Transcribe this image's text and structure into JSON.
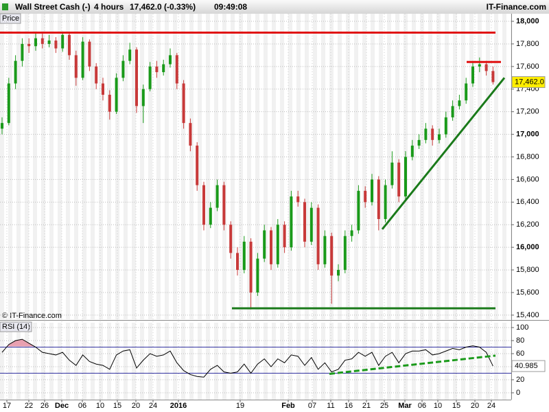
{
  "header": {
    "instrument": "Wall Street Cash (-)",
    "timeframe": "4 hours",
    "quote": "17,462.0 (-0.33%)",
    "time": "09:49:08",
    "site": "IT-Finance.com"
  },
  "chart_data": [
    {
      "type": "candlestick",
      "title": "Price",
      "watermark": "© IT-Finance.com",
      "ylim": [
        15363,
        18067
      ],
      "yticks": [
        {
          "value": 18000,
          "label": "18,000"
        },
        {
          "value": 17800,
          "label": "17,800"
        },
        {
          "value": 17600,
          "label": "17,600"
        },
        {
          "value": 17400,
          "label": "17,400"
        },
        {
          "value": 17200,
          "label": "17,200"
        },
        {
          "value": 17000,
          "label": "17,000"
        },
        {
          "value": 16800,
          "label": "16,800"
        },
        {
          "value": 16600,
          "label": "16,600"
        },
        {
          "value": 16400,
          "label": "16,400"
        },
        {
          "value": 16200,
          "label": "16,200"
        },
        {
          "value": 16000,
          "label": "16,000"
        },
        {
          "value": 15800,
          "label": "15,800"
        },
        {
          "value": 15600,
          "label": "15,600"
        },
        {
          "value": 15400,
          "label": "15,400"
        }
      ],
      "categories": [
        "17",
        "22",
        "26",
        "Dec",
        "06",
        "10",
        "15",
        "20",
        "24",
        "2016",
        "19",
        "Feb",
        "07",
        "11",
        "16",
        "21",
        "25",
        "Mar",
        "06",
        "10",
        "15",
        "20",
        "24"
      ],
      "up_color": "#1a9a1a",
      "down_color": "#c83a3a",
      "candles": [
        [
          17050,
          17150,
          17000,
          17100
        ],
        [
          17100,
          17500,
          17080,
          17450
        ],
        [
          17450,
          17700,
          17400,
          17650
        ],
        [
          17650,
          17850,
          17600,
          17800
        ],
        [
          17800,
          17850,
          17720,
          17780
        ],
        [
          17780,
          17900,
          17740,
          17850
        ],
        [
          17850,
          17890,
          17760,
          17800
        ],
        [
          17800,
          17880,
          17770,
          17830
        ],
        [
          17830,
          17860,
          17720,
          17760
        ],
        [
          17760,
          17910,
          17730,
          17880
        ],
        [
          17880,
          17900,
          17660,
          17700
        ],
        [
          17700,
          17740,
          17430,
          17500
        ],
        [
          17500,
          17860,
          17480,
          17820
        ],
        [
          17820,
          17840,
          17560,
          17600
        ],
        [
          17600,
          17630,
          17400,
          17450
        ],
        [
          17450,
          17500,
          17300,
          17350
        ],
        [
          17350,
          17390,
          17130,
          17200
        ],
        [
          17200,
          17540,
          17180,
          17500
        ],
        [
          17500,
          17700,
          17470,
          17650
        ],
        [
          17650,
          17810,
          17620,
          17750
        ],
        [
          17750,
          17770,
          17190,
          17250
        ],
        [
          17250,
          17440,
          17100,
          17400
        ],
        [
          17400,
          17640,
          17380,
          17600
        ],
        [
          17600,
          17650,
          17500,
          17550
        ],
        [
          17550,
          17660,
          17520,
          17620
        ],
        [
          17620,
          17760,
          17590,
          17700
        ],
        [
          17700,
          17720,
          17400,
          17450
        ],
        [
          17450,
          17480,
          17050,
          17100
        ],
        [
          17100,
          17140,
          16850,
          16900
        ],
        [
          16900,
          16930,
          16500,
          16550
        ],
        [
          16550,
          16580,
          16150,
          16200
        ],
        [
          16200,
          16400,
          16170,
          16350
        ],
        [
          16350,
          16600,
          16320,
          16550
        ],
        [
          16550,
          16580,
          16150,
          16200
        ],
        [
          16200,
          16230,
          15900,
          15950
        ],
        [
          15950,
          16000,
          15750,
          15800
        ],
        [
          15800,
          16100,
          15770,
          16050
        ],
        [
          16050,
          16080,
          15450,
          15600
        ],
        [
          15600,
          15950,
          15570,
          15900
        ],
        [
          15900,
          16200,
          15870,
          16150
        ],
        [
          16150,
          16180,
          15800,
          15850
        ],
        [
          15850,
          16250,
          15820,
          16200
        ],
        [
          16200,
          16230,
          15950,
          16000
        ],
        [
          16000,
          16500,
          15970,
          16450
        ],
        [
          16450,
          16500,
          16360,
          16400
        ],
        [
          16400,
          16430,
          16000,
          16050
        ],
        [
          16050,
          16400,
          16020,
          16350
        ],
        [
          16350,
          16380,
          15800,
          15850
        ],
        [
          15850,
          16150,
          15820,
          16100
        ],
        [
          16100,
          16130,
          15500,
          15750
        ],
        [
          15750,
          15850,
          15700,
          15800
        ],
        [
          15800,
          16150,
          15770,
          16100
        ],
        [
          16100,
          16200,
          16050,
          16150
        ],
        [
          16150,
          16550,
          16120,
          16500
        ],
        [
          16500,
          16540,
          16350,
          16400
        ],
        [
          16400,
          16650,
          16370,
          16600
        ],
        [
          16600,
          16630,
          16150,
          16250
        ],
        [
          16250,
          16600,
          16220,
          16550
        ],
        [
          16550,
          16850,
          16520,
          16750
        ],
        [
          16750,
          16780,
          16400,
          16450
        ],
        [
          16450,
          16850,
          16420,
          16800
        ],
        [
          16800,
          16950,
          16770,
          16900
        ],
        [
          16900,
          17000,
          16870,
          16950
        ],
        [
          16950,
          17100,
          16920,
          17050
        ],
        [
          17050,
          17080,
          16900,
          16950
        ],
        [
          16950,
          17050,
          16920,
          17000
        ],
        [
          17000,
          17200,
          16970,
          17150
        ],
        [
          17150,
          17300,
          17120,
          17250
        ],
        [
          17250,
          17350,
          17220,
          17300
        ],
        [
          17300,
          17500,
          17270,
          17450
        ],
        [
          17450,
          17650,
          17420,
          17600
        ],
        [
          17600,
          17680,
          17550,
          17620
        ],
        [
          17620,
          17650,
          17520,
          17560
        ],
        [
          17560,
          17600,
          17440,
          17462
        ]
      ],
      "last_label": "17,462.0",
      "lines": [
        {
          "color": "#e01010",
          "values": [
            17900,
            17900
          ]
        },
        {
          "color": "#1a7a1a",
          "values": [
            15460,
            15460
          ]
        },
        {
          "color": "#1a7a1a",
          "values": [
            16160,
            17500
          ]
        },
        {
          "color": "#e01010",
          "values": [
            17640,
            17640
          ]
        }
      ]
    },
    {
      "type": "line",
      "title": "RSI (14)",
      "ylim": [
        -10.5,
        107.4
      ],
      "yticks": [
        100,
        80,
        60,
        40,
        20,
        0
      ],
      "levels": [
        70,
        30
      ],
      "color": "#000000",
      "fill_color": "#e8a0b0",
      "values": [
        62,
        74,
        80,
        82,
        76,
        70,
        62,
        60,
        58,
        62,
        50,
        42,
        58,
        48,
        44,
        42,
        36,
        58,
        64,
        66,
        38,
        50,
        60,
        56,
        58,
        64,
        46,
        34,
        28,
        25,
        24,
        36,
        42,
        32,
        30,
        32,
        44,
        30,
        44,
        52,
        40,
        52,
        46,
        58,
        56,
        42,
        54,
        36,
        46,
        32,
        36,
        50,
        52,
        62,
        56,
        62,
        42,
        56,
        62,
        46,
        60,
        64,
        64,
        66,
        58,
        60,
        64,
        68,
        66,
        70,
        72,
        70,
        62,
        40.985
      ],
      "trend": {
        "color": "#1a9a1a",
        "values": [
          29,
          57
        ]
      }
    }
  ]
}
